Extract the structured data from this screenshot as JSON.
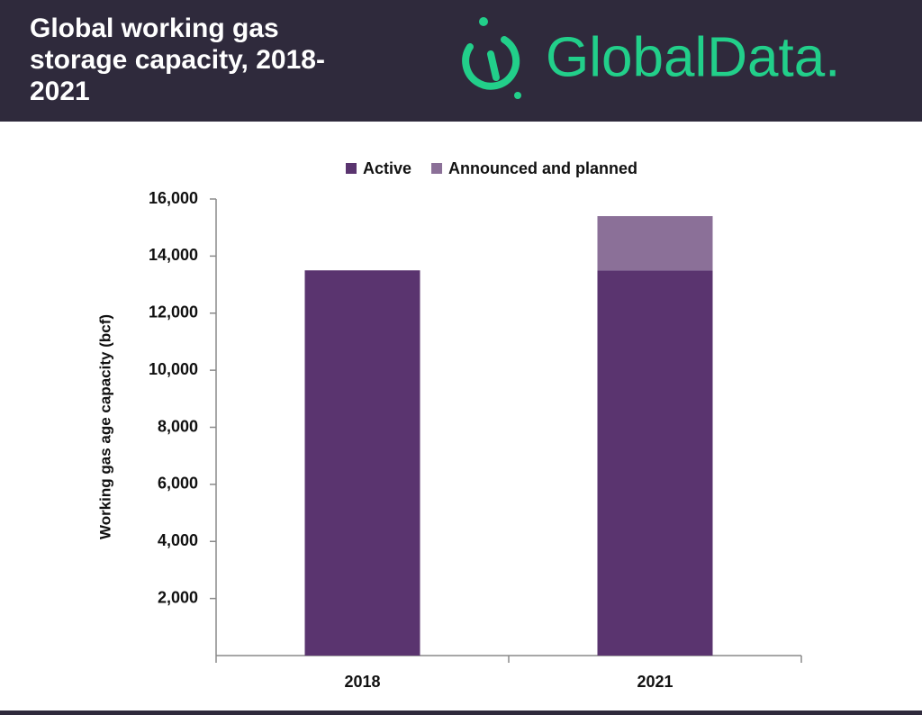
{
  "header": {
    "title": "Global working gas storage capacity, 2018-2021",
    "brand": "GlobalData."
  },
  "chart_data": {
    "type": "stacked-bar",
    "y_label": "Working gas age capacity (bcf)",
    "categories": [
      "2018",
      "2021"
    ],
    "series": [
      {
        "name": "Active",
        "color": "#5a346f",
        "values": [
          13500,
          13500
        ]
      },
      {
        "name": "Announced and planned",
        "color": "#8b7098",
        "values": [
          0,
          1900
        ]
      }
    ],
    "ylim": [
      0,
      16000
    ],
    "yticks": [
      {
        "value": 2000,
        "label": "2,000"
      },
      {
        "value": 4000,
        "label": "4,000"
      },
      {
        "value": 6000,
        "label": "6,000"
      },
      {
        "value": 8000,
        "label": "8,000"
      },
      {
        "value": 10000,
        "label": "10,000"
      },
      {
        "value": 12000,
        "label": "12,000"
      },
      {
        "value": 14000,
        "label": "14,000"
      },
      {
        "value": 16000,
        "label": "16,000"
      }
    ],
    "grid": false,
    "legend": "top"
  }
}
